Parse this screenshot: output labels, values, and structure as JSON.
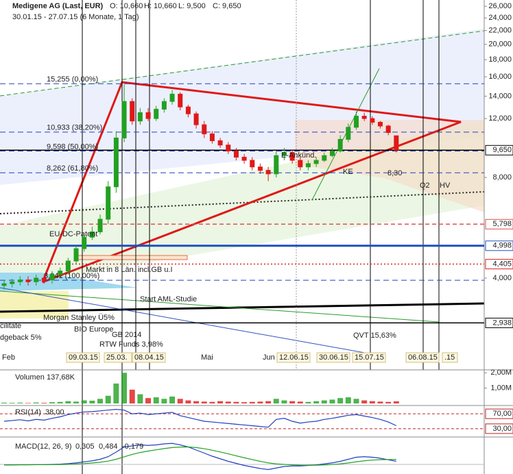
{
  "chart_data": {
    "type": "candlestick",
    "title": "Medigene AG (Last, EUR)",
    "ohlc_labels": [
      "O: 10,660",
      "H: 10,660",
      "L: 9,500",
      "C: 9,650"
    ],
    "subtitle": "30.01.15 - 27.07.15 (6 Monate, 1 Tag)",
    "open": [
      3.8,
      3.85,
      3.9,
      3.95,
      3.9,
      4.0,
      3.95,
      4.1,
      4.2,
      4.5,
      4.9,
      5.3,
      5.5,
      6.0,
      7.5,
      10.5,
      13.5,
      11.8,
      12.5,
      12.0,
      12.8,
      13.5,
      14.2,
      13.0,
      12.4,
      11.5,
      10.8,
      10.3,
      10.0,
      9.6,
      9.2,
      9.0,
      8.6,
      8.4,
      8.2,
      9.3,
      9.5,
      9.0,
      8.6,
      8.8,
      9.0,
      9.3,
      9.6,
      10.4,
      11.3,
      12.2,
      12.0,
      11.7,
      11.4,
      10.66
    ],
    "high": [
      3.95,
      3.98,
      4.05,
      4.05,
      4.1,
      4.1,
      4.2,
      4.3,
      4.6,
      5.0,
      5.4,
      5.7,
      6.2,
      7.8,
      11.0,
      15.25,
      13.8,
      12.9,
      12.9,
      13.1,
      13.8,
      14.6,
      14.4,
      13.2,
      12.6,
      11.8,
      11.0,
      10.5,
      10.2,
      9.8,
      9.4,
      9.2,
      8.8,
      8.6,
      9.6,
      9.8,
      9.7,
      9.2,
      9.0,
      9.2,
      9.5,
      9.8,
      10.7,
      11.6,
      12.6,
      12.5,
      12.2,
      11.8,
      11.5,
      10.66
    ],
    "low": [
      3.7,
      3.75,
      3.8,
      3.8,
      3.8,
      3.85,
      3.85,
      4.0,
      4.1,
      4.4,
      4.8,
      5.2,
      5.4,
      5.8,
      7.2,
      10.2,
      11.5,
      11.5,
      11.8,
      11.8,
      12.5,
      13.2,
      12.7,
      12.1,
      11.2,
      10.5,
      10.1,
      9.8,
      9.4,
      9.0,
      8.8,
      8.4,
      8.2,
      7.8,
      8.0,
      9.0,
      8.8,
      8.4,
      8.4,
      8.6,
      8.9,
      9.2,
      9.5,
      10.2,
      11.1,
      11.8,
      11.5,
      11.2,
      10.7,
      9.5
    ],
    "close": [
      3.85,
      3.9,
      3.95,
      3.9,
      4.0,
      3.95,
      4.1,
      4.2,
      4.5,
      4.9,
      5.3,
      5.5,
      6.0,
      7.5,
      10.5,
      13.5,
      11.8,
      12.5,
      12.0,
      12.8,
      13.5,
      14.2,
      13.0,
      12.4,
      11.5,
      10.8,
      10.3,
      10.0,
      9.6,
      9.2,
      9.0,
      8.6,
      8.4,
      8.2,
      9.3,
      9.5,
      9.0,
      8.6,
      8.8,
      9.0,
      9.3,
      9.6,
      10.4,
      11.3,
      12.2,
      12.0,
      11.7,
      11.4,
      10.9,
      9.65
    ],
    "up_color": "#22a022",
    "down_color": "#e01818",
    "log_scale": true,
    "ylim": [
      2.126,
      27.15
    ],
    "yticks": [
      {
        "value": 4,
        "label": "4,000"
      },
      {
        "value": 8,
        "label": "8,000"
      },
      {
        "value": 12,
        "label": "12,000"
      },
      {
        "value": 14,
        "label": "14,000"
      },
      {
        "value": 16,
        "label": "16,000"
      },
      {
        "value": 18,
        "label": "18,000"
      },
      {
        "value": 20,
        "label": "20,000"
      },
      {
        "value": 22,
        "label": "22,000"
      },
      {
        "value": 24,
        "label": "24,000"
      },
      {
        "value": 26,
        "label": "26,000"
      }
    ],
    "levels": [
      {
        "value": 9.65,
        "label": "9,650",
        "color": "#000000"
      },
      {
        "value": 5.798,
        "label": "5,798",
        "color": "#e05050"
      },
      {
        "value": 4.998,
        "label": "4,998",
        "color": "#1f4fbf"
      },
      {
        "value": 4.405,
        "label": "4,405",
        "color": "#e02020"
      },
      {
        "value": 2.938,
        "label": "2,938",
        "color": "#000000"
      }
    ],
    "fib_levels": [
      {
        "value": 15.255,
        "label": "15,255 (0,00%)"
      },
      {
        "value": 10.933,
        "label": "10,933 (38,20%)"
      },
      {
        "value": 9.598,
        "label": "9,598 (50,00%)"
      },
      {
        "value": 8.262,
        "label": "8,262 (61,80%)"
      },
      {
        "value": 3.941,
        "label": "3,941 (100,00%)"
      }
    ],
    "x_labels": [
      "Feb",
      "09.03.15",
      "25.03.",
      "08.04.15",
      "Mai",
      "Jun",
      "12.06.15",
      "30.06.15",
      "15.07.15",
      "06.08.15",
      ".15"
    ],
    "annotations": [
      "EU-DC-Patent",
      "Markt in 8 Län. incl.GB u.I",
      "Start AML-Studie",
      "Morgan Stanley Ü5%",
      "BIO Europe",
      "GB 2014",
      "RTW Funds 3,98%",
      "QVT 15,63%",
      "E-Ankünd.",
      "KE",
      "8,30",
      "Q2",
      "HV",
      "cilitate",
      "dgeback 5%"
    ],
    "volume": {
      "label": "Volumen",
      "value_text": "137,68K",
      "ylim": [
        0,
        2.1
      ],
      "yticks": [
        {
          "value": 1,
          "label": "1,00M"
        },
        {
          "value": 2,
          "label": "2,00M"
        }
      ],
      "values": [
        0.05,
        0.04,
        0.05,
        0.03,
        0.06,
        0.04,
        0.08,
        0.1,
        0.15,
        0.12,
        0.2,
        0.18,
        0.3,
        0.5,
        1.3,
        2.0,
        0.9,
        0.6,
        0.35,
        0.4,
        0.3,
        0.45,
        0.3,
        0.2,
        0.15,
        0.12,
        0.1,
        0.15,
        0.12,
        0.1,
        0.08,
        0.1,
        0.12,
        0.15,
        0.3,
        0.2,
        0.15,
        0.12,
        0.1,
        0.15,
        0.2,
        0.25,
        0.35,
        0.4,
        0.3,
        0.2,
        0.15,
        0.12,
        0.1,
        0.14
      ]
    },
    "rsi": {
      "label": "RSI(14)",
      "value_text": "38,00",
      "ylim": [
        15,
        85
      ],
      "yticks": [
        {
          "value": 30,
          "label": "30,00"
        },
        {
          "value": 70,
          "label": "70,00"
        }
      ],
      "color": "#1f3fbf",
      "values": [
        50,
        52,
        54,
        51,
        55,
        53,
        58,
        62,
        68,
        72,
        75,
        76,
        78,
        80,
        82,
        80,
        70,
        72,
        68,
        70,
        72,
        74,
        65,
        60,
        55,
        50,
        48,
        46,
        44,
        42,
        40,
        38,
        36,
        34,
        55,
        58,
        50,
        45,
        48,
        50,
        55,
        58,
        62,
        66,
        68,
        64,
        60,
        55,
        48,
        38
      ]
    },
    "macd": {
      "label": "MACD(12, 26, 9)",
      "value_texts": [
        "0,305",
        "0,484",
        "-0,179"
      ],
      "ylim": [
        -0.8,
        2.4
      ],
      "series": [
        {
          "color": "#1f3fbf",
          "values": [
            -0.05,
            -0.04,
            -0.03,
            -0.03,
            -0.02,
            -0.02,
            0,
            0.03,
            0.08,
            0.15,
            0.25,
            0.35,
            0.5,
            0.75,
            1.2,
            1.7,
            1.8,
            1.9,
            1.85,
            1.9,
            2.0,
            2.05,
            1.9,
            1.7,
            1.4,
            1.1,
            0.8,
            0.55,
            0.3,
            0.1,
            -0.1,
            -0.25,
            -0.4,
            -0.5,
            -0.35,
            -0.2,
            -0.15,
            -0.15,
            -0.1,
            -0.05,
            0.05,
            0.15,
            0.3,
            0.5,
            0.7,
            0.75,
            0.7,
            0.6,
            0.45,
            0.305
          ]
        },
        {
          "color": "#22a022",
          "values": [
            -0.05,
            -0.05,
            -0.04,
            -0.04,
            -0.03,
            -0.03,
            -0.02,
            -0.01,
            0.01,
            0.04,
            0.08,
            0.14,
            0.21,
            0.32,
            0.5,
            0.74,
            0.97,
            1.16,
            1.3,
            1.42,
            1.54,
            1.64,
            1.69,
            1.7,
            1.64,
            1.53,
            1.38,
            1.21,
            1.03,
            0.84,
            0.65,
            0.47,
            0.3,
            0.15,
            0.05,
            0,
            -0.04,
            -0.07,
            -0.08,
            -0.08,
            -0.05,
            -0.01,
            0.05,
            0.14,
            0.25,
            0.35,
            0.42,
            0.46,
            0.47,
            0.484
          ]
        }
      ]
    }
  }
}
